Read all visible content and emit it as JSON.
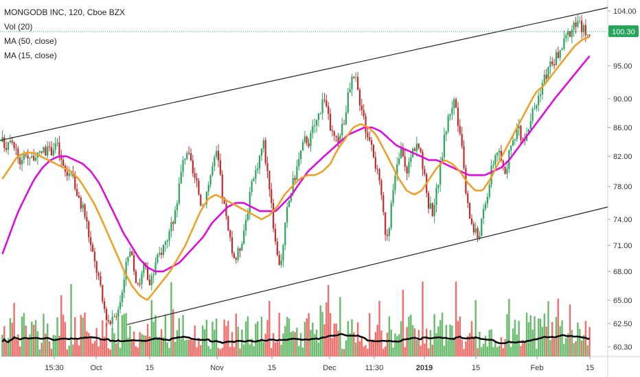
{
  "legend": {
    "title": "MONGODB INC, 120, Cboe BZX",
    "vol": "Vol (20)",
    "ma50": "MA (50, close)",
    "ma15": "MA (15, close)"
  },
  "last_price_label": "100.30",
  "colors": {
    "up": "#26a65b",
    "down": "#c62828",
    "ma15": "#f39c1f",
    "ma50": "#e600e6",
    "vol_ma": "#000000",
    "vol_up": "#4caf50",
    "vol_down": "#ef5350",
    "trend": "#222222",
    "last_price": "#26a65b"
  },
  "chart_data": {
    "type": "candlestick",
    "symbol": "MONGODB INC",
    "interval": "120",
    "exchange": "Cboe BZX",
    "y_axis_scale": "log",
    "y_ticks": [
      "104.00",
      "100.30",
      "95.00",
      "90.00",
      "86.00",
      "82.00",
      "78.00",
      "74.00",
      "71.00",
      "68.00",
      "65.00",
      "62.50",
      "60.30"
    ],
    "x_ticks": [
      {
        "label": "15:30",
        "bold": false
      },
      {
        "label": "Oct",
        "bold": false
      },
      {
        "label": "15",
        "bold": false
      },
      {
        "label": "Nov",
        "bold": false
      },
      {
        "label": "15",
        "bold": false
      },
      {
        "label": "Dec",
        "bold": false
      },
      {
        "label": "11:30",
        "bold": false
      },
      {
        "label": "2019",
        "bold": true
      },
      {
        "label": "15",
        "bold": false
      },
      {
        "label": "Feb",
        "bold": false
      },
      {
        "label": "15",
        "bold": false
      }
    ],
    "price_path": [
      84,
      83.5,
      85,
      84,
      82,
      81,
      82.5,
      82,
      82,
      81.5,
      82.5,
      83,
      82.5,
      83,
      84,
      82,
      80,
      79.5,
      80.5,
      78,
      76,
      75.5,
      73.5,
      71,
      69,
      67.5,
      65,
      63.5,
      62.5,
      64,
      63.5,
      65.5,
      68.5,
      70,
      69,
      67,
      67,
      69,
      66.5,
      67,
      69,
      70,
      71,
      72,
      73,
      75,
      78,
      81,
      83,
      81,
      79,
      77.5,
      75.5,
      77,
      79,
      81,
      82.5,
      78,
      75,
      72,
      70,
      69.5,
      71,
      73,
      75.5,
      78,
      80,
      82,
      84,
      80,
      77,
      71,
      69,
      70,
      74.5,
      77,
      79,
      81,
      83,
      84.5,
      84,
      86,
      87,
      89,
      90.5,
      87,
      85,
      84,
      85,
      87,
      90,
      92.5,
      93,
      90,
      88.5,
      84.5,
      85,
      81.5,
      79,
      75.5,
      72,
      74,
      78,
      81,
      83,
      80,
      81,
      83,
      84,
      82,
      79,
      76,
      75,
      77,
      80,
      84,
      87,
      89,
      90,
      85,
      82,
      76,
      74,
      72.5,
      72,
      74,
      76,
      79,
      81.5,
      83,
      81,
      80,
      82,
      84,
      86,
      85,
      84.5,
      86,
      88,
      89,
      91,
      93,
      94,
      95.5,
      96,
      97,
      98,
      99.5,
      100.5,
      101,
      102,
      101,
      100.5,
      100.3
    ],
    "ma15_path": [
      79,
      80.5,
      82,
      82.5,
      82.5,
      82,
      81.5,
      81,
      80.5,
      80,
      79,
      77.5,
      76,
      74,
      72,
      70,
      68,
      66.5,
      65.5,
      65,
      66,
      67,
      68,
      69.5,
      71,
      73,
      75,
      76.5,
      77,
      76.5,
      76,
      75.5,
      75,
      74.5,
      74,
      74.5,
      75.5,
      77,
      78,
      79,
      79.5,
      79.5,
      80,
      81,
      83,
      84.5,
      86,
      86.5,
      86,
      85,
      83,
      81,
      79,
      77.5,
      77,
      77.5,
      79,
      80.5,
      81.5,
      81,
      80,
      78.5,
      77.5,
      77.5,
      79,
      81,
      83,
      85,
      87,
      89,
      91,
      92,
      93.5,
      95,
      96.5,
      98,
      99,
      99.5
    ],
    "ma50_path": [
      70,
      72.5,
      75,
      77,
      79,
      80.5,
      81.5,
      82,
      82,
      81.5,
      81,
      80,
      78.5,
      76.5,
      74.5,
      72.5,
      71,
      69.5,
      68.5,
      68,
      68,
      68.5,
      69,
      70,
      71,
      72,
      73.5,
      74.5,
      75.5,
      76,
      76,
      75.5,
      75,
      75,
      75,
      76,
      77,
      78.5,
      80,
      81,
      82,
      83,
      84,
      85,
      85.5,
      86,
      86,
      85.5,
      84.5,
      83.5,
      83,
      82.5,
      82,
      81.5,
      81.5,
      81,
      80.5,
      80,
      79.5,
      79.5,
      79.5,
      80,
      80.5,
      81.5,
      83,
      84.5,
      86,
      87.5,
      89,
      90.5,
      92,
      93.5,
      95,
      96.5
    ],
    "trend_upper": {
      "start": 84.2,
      "end": 104.6
    },
    "trend_lower": {
      "start": 62.4,
      "end": 75.5
    }
  }
}
